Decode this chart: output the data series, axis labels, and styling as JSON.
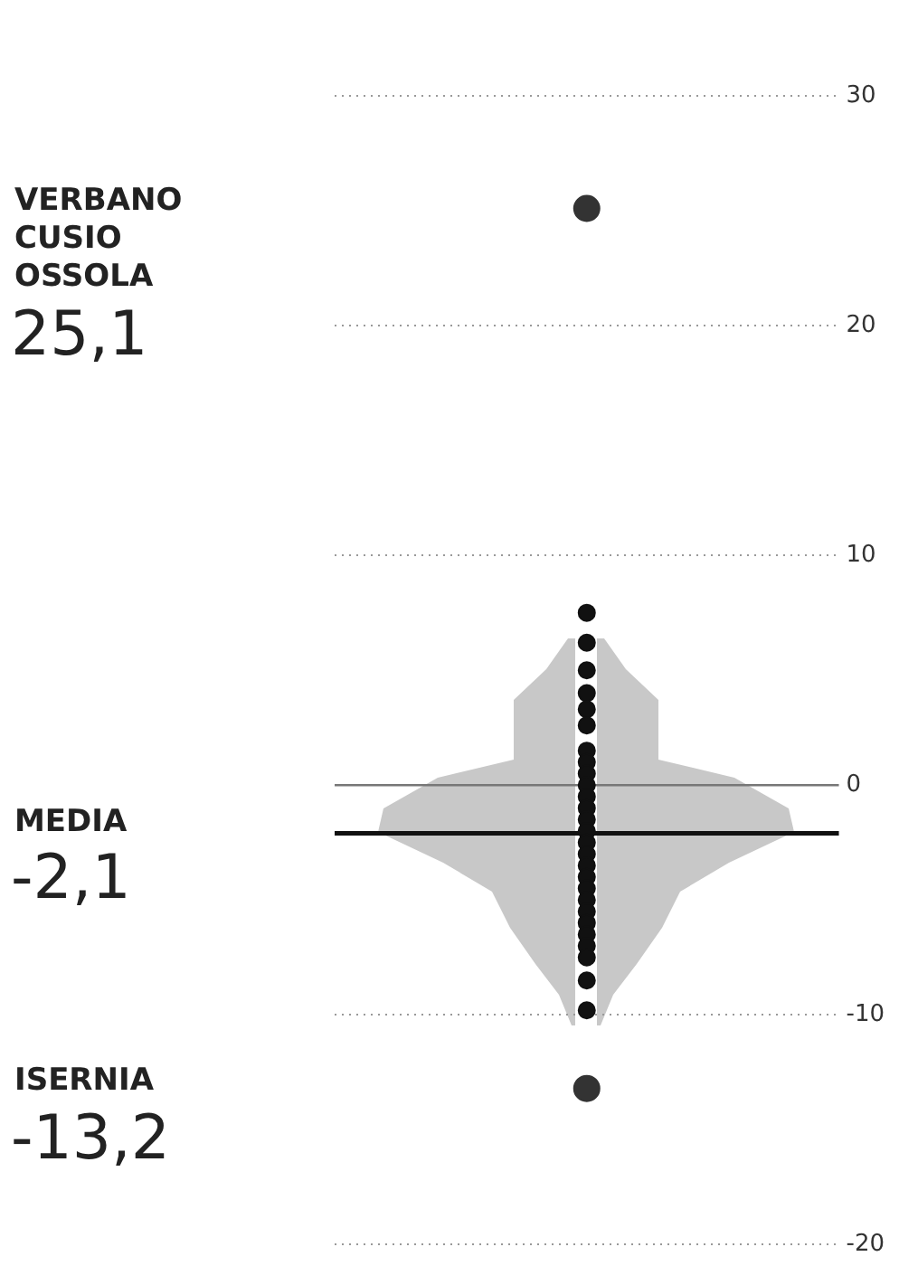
{
  "chart_data": {
    "type": "scatter",
    "categories": [
      null
    ],
    "ylim": [
      -20,
      30
    ],
    "yticks": [
      30,
      20,
      10,
      0,
      -10,
      -20
    ],
    "grid": "y",
    "tick_labels": "y",
    "legend": false,
    "marker": "circle",
    "series": [
      {
        "color": "#111111",
        "x": [
          null,
          null,
          null,
          null,
          null,
          null,
          null,
          null,
          null,
          null,
          null,
          null,
          null,
          null,
          null,
          null,
          null,
          null,
          null,
          null,
          null,
          null,
          null,
          null,
          null,
          null,
          null
        ],
        "values": [
          7.5,
          6.2,
          5,
          4,
          3.3,
          2.6,
          1.5,
          1,
          0.5,
          0,
          -0.5,
          -1,
          -1.5,
          -2,
          -2.5,
          -3,
          -3.5,
          -4,
          -4.5,
          -5,
          -5.5,
          -6,
          -6.5,
          -7,
          -7.5,
          -8.5,
          -9.8
        ]
      },
      {
        "color": "#333333",
        "x": [
          null,
          null
        ],
        "values": [
          25.1,
          -13.2
        ]
      }
    ],
    "ref_lines": [
      {
        "axis": "y",
        "value": 0,
        "color": "#777777"
      },
      {
        "axis": "y",
        "value": -2.1,
        "label": "MEDIA -2,1",
        "color": "#111111"
      }
    ],
    "annotations": [
      "VERBANO CUSIO OSSOLA",
      "25,1",
      "ISERNIA",
      "-13,2"
    ]
  }
}
